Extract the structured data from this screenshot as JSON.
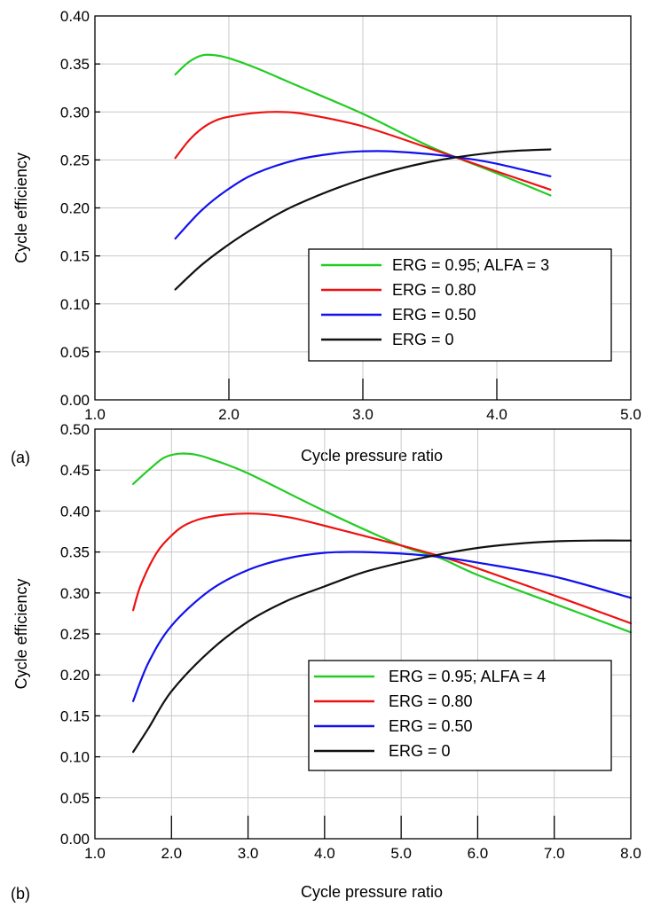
{
  "chart_data": [
    {
      "panel": "(a)",
      "type": "line",
      "title": "",
      "xlabel": "Cycle pressure ratio",
      "ylabel": "Cycle efficiency",
      "xlim": [
        1.0,
        5.0
      ],
      "ylim": [
        0.0,
        0.4
      ],
      "xticks": [
        1.0,
        2.0,
        3.0,
        4.0,
        5.0
      ],
      "xtick_labels": [
        "1.0",
        "2.0",
        "3.0",
        "4.0",
        "5.0"
      ],
      "yticks": [
        0.0,
        0.05,
        0.1,
        0.15,
        0.2,
        0.25,
        0.3,
        0.35,
        0.4
      ],
      "ytick_labels": [
        "0.00",
        "0.05",
        "0.10",
        "0.15",
        "0.20",
        "0.25",
        "0.30",
        "0.35",
        "0.40"
      ],
      "grid": true,
      "legend_position": "lower-right",
      "series": [
        {
          "name": "ERG  = 0.95; ALFA = 3",
          "color": "#22cc22",
          "x": [
            1.6,
            1.7,
            1.8,
            1.9,
            2.0,
            2.2,
            2.5,
            3.0,
            3.5,
            4.0,
            4.4
          ],
          "y": [
            0.339,
            0.352,
            0.359,
            0.359,
            0.356,
            0.346,
            0.328,
            0.298,
            0.264,
            0.236,
            0.213
          ]
        },
        {
          "name": "ERG  = 0.80",
          "color": "#ee1111",
          "x": [
            1.6,
            1.7,
            1.8,
            1.9,
            2.0,
            2.2,
            2.4,
            2.6,
            3.0,
            3.5,
            4.0,
            4.4
          ],
          "y": [
            0.252,
            0.27,
            0.283,
            0.291,
            0.295,
            0.299,
            0.3,
            0.297,
            0.285,
            0.262,
            0.238,
            0.219
          ]
        },
        {
          "name": "ERG  = 0.50",
          "color": "#1111ee",
          "x": [
            1.6,
            1.8,
            2.0,
            2.2,
            2.5,
            2.8,
            3.0,
            3.2,
            3.5,
            3.8,
            4.0,
            4.4
          ],
          "y": [
            0.168,
            0.198,
            0.22,
            0.236,
            0.25,
            0.257,
            0.259,
            0.259,
            0.256,
            0.251,
            0.246,
            0.233
          ]
        },
        {
          "name": "ERG  = 0",
          "color": "#111111",
          "x": [
            1.6,
            1.8,
            2.0,
            2.2,
            2.5,
            3.0,
            3.5,
            4.0,
            4.4
          ],
          "y": [
            0.115,
            0.141,
            0.162,
            0.18,
            0.203,
            0.23,
            0.248,
            0.258,
            0.261
          ]
        }
      ]
    },
    {
      "panel": "(b)",
      "type": "line",
      "title": "",
      "xlabel": "Cycle pressure ratio",
      "ylabel": "Cycle efficiency",
      "xlim": [
        1.0,
        8.0
      ],
      "ylim": [
        0.0,
        0.5
      ],
      "xticks": [
        1.0,
        2.0,
        3.0,
        4.0,
        5.0,
        6.0,
        7.0,
        8.0
      ],
      "xtick_labels": [
        "1.0",
        "2.0",
        "3.0",
        "4.0",
        "5.0",
        "6.0",
        "7.0",
        "8.0"
      ],
      "yticks": [
        0.0,
        0.05,
        0.1,
        0.15,
        0.2,
        0.25,
        0.3,
        0.35,
        0.4,
        0.45,
        0.5
      ],
      "ytick_labels": [
        "0.00",
        "0.05",
        "0.10",
        "0.15",
        "0.20",
        "0.25",
        "0.30",
        "0.35",
        "0.40",
        "0.45",
        "0.50"
      ],
      "grid": true,
      "legend_position": "lower-right",
      "series": [
        {
          "name": "ERG  = 0.95; ALFA = 4",
          "color": "#22cc22",
          "x": [
            1.5,
            1.7,
            1.9,
            2.1,
            2.3,
            2.5,
            3.0,
            4.0,
            5.0,
            5.5,
            6.0,
            7.0,
            8.0
          ],
          "y": [
            0.433,
            0.45,
            0.465,
            0.47,
            0.469,
            0.464,
            0.446,
            0.4,
            0.358,
            0.343,
            0.322,
            0.287,
            0.252
          ]
        },
        {
          "name": "ERG  = 0.80",
          "color": "#ee1111",
          "x": [
            1.5,
            1.6,
            1.8,
            2.0,
            2.2,
            2.5,
            3.0,
            3.5,
            4.0,
            5.0,
            5.5,
            6.0,
            7.0,
            8.0
          ],
          "y": [
            0.279,
            0.31,
            0.348,
            0.37,
            0.384,
            0.393,
            0.397,
            0.393,
            0.382,
            0.358,
            0.345,
            0.33,
            0.297,
            0.263
          ]
        },
        {
          "name": "ERG  = 0.50",
          "color": "#1111ee",
          "x": [
            1.5,
            1.7,
            2.0,
            2.5,
            3.0,
            3.5,
            4.0,
            4.5,
            5.0,
            5.5,
            6.0,
            7.0,
            8.0
          ],
          "y": [
            0.168,
            0.215,
            0.26,
            0.303,
            0.328,
            0.342,
            0.349,
            0.35,
            0.348,
            0.344,
            0.337,
            0.32,
            0.294
          ]
        },
        {
          "name": "ERG  = 0",
          "color": "#111111",
          "x": [
            1.5,
            1.7,
            2.0,
            2.5,
            3.0,
            3.5,
            4.0,
            4.5,
            5.0,
            5.5,
            6.0,
            6.5,
            7.0,
            7.5,
            8.0
          ],
          "y": [
            0.106,
            0.135,
            0.18,
            0.229,
            0.265,
            0.29,
            0.308,
            0.325,
            0.337,
            0.347,
            0.355,
            0.36,
            0.363,
            0.364,
            0.364
          ]
        }
      ]
    }
  ]
}
